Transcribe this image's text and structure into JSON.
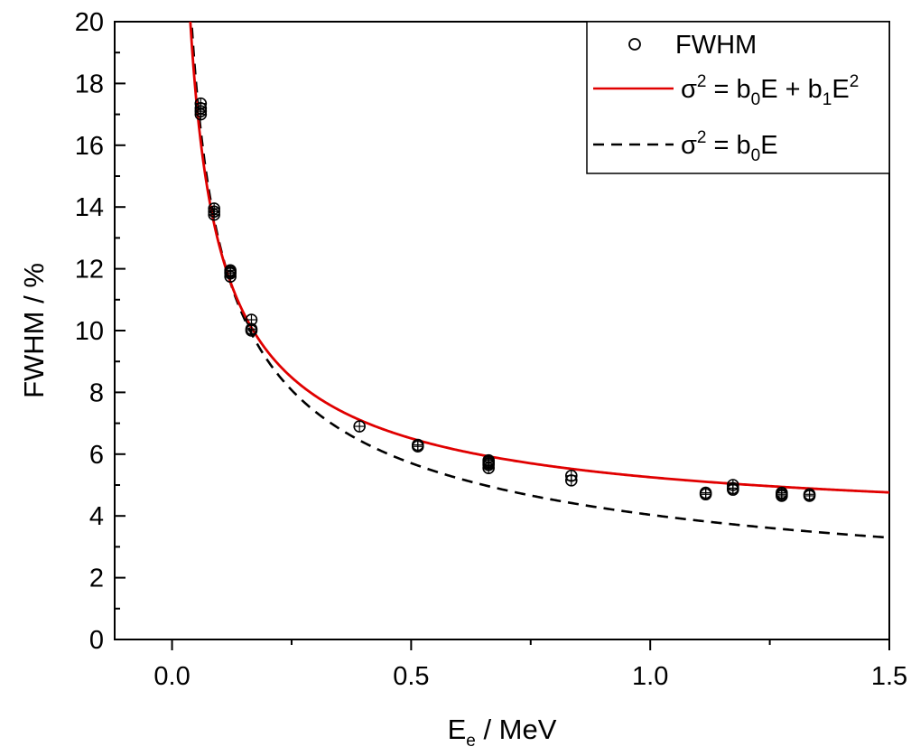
{
  "chart_data": {
    "type": "scatter",
    "xlabel": "E",
    "xlabel_sub": "e",
    "xlabel_unit": " / MeV",
    "ylabel": "FWHM / %",
    "xlim": [
      -0.12,
      1.5
    ],
    "ylim": [
      0,
      20
    ],
    "x_ticks": [
      0.0,
      0.5,
      1.0,
      1.5
    ],
    "x_tick_labels": [
      "0.0",
      "0.5",
      "1.0",
      "1.5"
    ],
    "y_ticks": [
      0,
      2,
      4,
      6,
      8,
      10,
      12,
      14,
      16,
      18,
      20
    ],
    "y_tick_labels": [
      "0",
      "2",
      "4",
      "6",
      "8",
      "10",
      "12",
      "14",
      "16",
      "18",
      "20"
    ],
    "grid": false,
    "legend_position": "top-right",
    "legend": {
      "fwhm": "FWHM",
      "quad": {
        "a": "σ",
        "a_sup": "2",
        "b": " = b",
        "b_sub": "0",
        "c": "E + b",
        "c_sub": "1",
        "d": "E",
        "d_sup": "2"
      },
      "lin": {
        "a": "σ",
        "a_sup": "2",
        "b": " = b",
        "b_sub": "0",
        "c": "E"
      }
    },
    "colors": {
      "quad_fit": "#e00000",
      "lin_fit": "#000000",
      "markers": "#000000"
    },
    "series": [
      {
        "name": "FWHM",
        "kind": "markers",
        "x": [
          0.06,
          0.06,
          0.06,
          0.06,
          0.088,
          0.088,
          0.088,
          0.122,
          0.122,
          0.122,
          0.122,
          0.166,
          0.166,
          0.166,
          0.392,
          0.514,
          0.514,
          0.662,
          0.662,
          0.662,
          0.662,
          0.662,
          0.835,
          0.835,
          1.116,
          1.116,
          1.173,
          1.173,
          1.173,
          1.275,
          1.275,
          1.275,
          1.333,
          1.333
        ],
        "y": [
          17.0,
          17.1,
          17.2,
          17.35,
          13.75,
          13.85,
          13.95,
          11.75,
          11.85,
          11.9,
          11.95,
          10.0,
          10.05,
          10.35,
          6.9,
          6.25,
          6.3,
          5.55,
          5.65,
          5.7,
          5.75,
          5.8,
          5.15,
          5.3,
          4.7,
          4.75,
          4.85,
          4.9,
          5.0,
          4.65,
          4.7,
          4.75,
          4.65,
          4.7
        ]
      },
      {
        "name": "σ² = b₀E + b₁E²",
        "kind": "line",
        "style": "solid",
        "model": {
          "b0": 17.6,
          "b1": 17.0
        }
      },
      {
        "name": "σ² = b₀E",
        "kind": "line",
        "style": "dashed",
        "model": {
          "b0": 16.3
        }
      }
    ]
  }
}
